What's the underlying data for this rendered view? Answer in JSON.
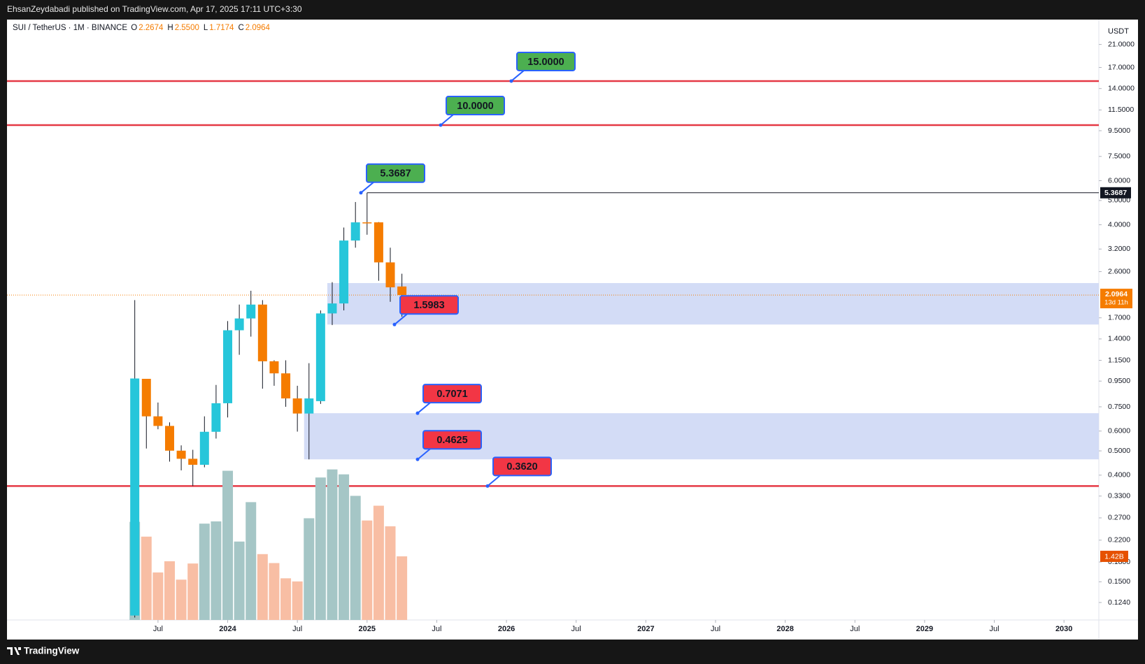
{
  "header": {
    "text": "EhsanZeydabadi published on TradingView.com, Apr 17, 2025 17:11 UTC+3:30"
  },
  "footer": {
    "brand": "TradingView"
  },
  "chart_data": {
    "type": "candlestick",
    "symbol": "SUI / TetherUS · 1M · BINANCE",
    "legend_values": [
      {
        "key": "O",
        "label": "2.2674"
      },
      {
        "key": "H",
        "label": "2.5500"
      },
      {
        "key": "L",
        "label": "1.7174"
      },
      {
        "key": "C",
        "label": "2.0964"
      }
    ],
    "currency": "USDT",
    "x": [
      "2023-05",
      "2023-06",
      "2023-07",
      "2023-08",
      "2023-09",
      "2023-10",
      "2023-11",
      "2023-12",
      "2024-01",
      "2024-02",
      "2024-03",
      "2024-04",
      "2024-05",
      "2024-06",
      "2024-07",
      "2024-08",
      "2024-09",
      "2024-10",
      "2024-11",
      "2024-12",
      "2025-01",
      "2025-02",
      "2025-03",
      "2025-04"
    ],
    "open": [
      0.11,
      0.97,
      0.687,
      0.629,
      0.501,
      0.465,
      0.44,
      0.596,
      0.775,
      1.516,
      1.69,
      1.92,
      1.14,
      1.02,
      0.81,
      0.705,
      0.79,
      1.77,
      1.94,
      3.46,
      4.09,
      4.09,
      2.83,
      2.2674
    ],
    "high": [
      2.0,
      0.97,
      0.78,
      0.65,
      0.526,
      0.505,
      0.687,
      0.917,
      1.65,
      1.92,
      2.18,
      2.0,
      1.15,
      1.15,
      0.91,
      1.12,
      1.82,
      2.36,
      3.9,
      4.93,
      5.3687,
      4.1,
      3.24,
      2.55
    ],
    "low": [
      0.108,
      0.511,
      0.61,
      0.453,
      0.418,
      0.362,
      0.43,
      0.56,
      0.68,
      1.21,
      1.43,
      0.886,
      0.91,
      0.75,
      0.597,
      0.4625,
      0.77,
      1.59,
      1.82,
      3.24,
      3.65,
      2.39,
      1.97,
      1.7174
    ],
    "close": [
      0.973,
      0.687,
      0.629,
      0.501,
      0.465,
      0.44,
      0.596,
      0.775,
      1.516,
      1.69,
      1.92,
      1.14,
      1.02,
      0.81,
      0.705,
      0.81,
      1.77,
      1.94,
      3.46,
      4.09,
      4.07,
      2.83,
      2.25,
      2.0964
    ],
    "volume": [
      2.19,
      1.86,
      1.06,
      1.31,
      0.9,
      1.26,
      2.15,
      2.2,
      3.33,
      1.75,
      2.63,
      1.47,
      1.27,
      0.93,
      0.86,
      2.27,
      3.18,
      3.36,
      3.25,
      2.77,
      2.22,
      2.55,
      2.09,
      1.42
    ],
    "volume_label": {
      "value": 1.42,
      "label": "1.42B"
    },
    "up_color": "#26c6da",
    "down_color": "#f57c00",
    "volume_up_color": "#a5c6c6",
    "volume_down_color": "#f8bea4",
    "log_scale": true,
    "grid": false,
    "xlim": [
      "2022-06",
      "2030-04"
    ],
    "xticks": [
      {
        "value": "2023-07",
        "label": "Jul"
      },
      {
        "value": "2024-01",
        "label": "2024"
      },
      {
        "value": "2024-07",
        "label": "Jul"
      },
      {
        "value": "2025-01",
        "label": "2025"
      },
      {
        "value": "2025-07",
        "label": "Jul"
      },
      {
        "value": "2026-01",
        "label": "2026"
      },
      {
        "value": "2026-07",
        "label": "Jul"
      },
      {
        "value": "2027-01",
        "label": "2027"
      },
      {
        "value": "2027-07",
        "label": "Jul"
      },
      {
        "value": "2028-01",
        "label": "2028"
      },
      {
        "value": "2028-07",
        "label": "Jul"
      },
      {
        "value": "2029-01",
        "label": "2029"
      },
      {
        "value": "2029-07",
        "label": "Jul"
      },
      {
        "value": "2030-01",
        "label": "2030"
      }
    ],
    "ylim": [
      0.1056,
      26.4
    ],
    "yticks": [
      {
        "value": 21,
        "label": "21.0000"
      },
      {
        "value": 17,
        "label": "17.0000"
      },
      {
        "value": 14,
        "label": "14.0000"
      },
      {
        "value": 11.5,
        "label": "11.5000"
      },
      {
        "value": 9.5,
        "label": "9.5000"
      },
      {
        "value": 7.5,
        "label": "7.5000"
      },
      {
        "value": 6,
        "label": "6.0000"
      },
      {
        "value": 5,
        "label": "5.0000"
      },
      {
        "value": 4,
        "label": "4.0000"
      },
      {
        "value": 3.2,
        "label": "3.2000"
      },
      {
        "value": 2.6,
        "label": "2.6000"
      },
      {
        "value": 1.7,
        "label": "1.7000"
      },
      {
        "value": 1.4,
        "label": "1.4000"
      },
      {
        "value": 1.15,
        "label": "1.1500"
      },
      {
        "value": 0.95,
        "label": "0.9500"
      },
      {
        "value": 0.75,
        "label": "0.7500"
      },
      {
        "value": 0.6,
        "label": "0.6000"
      },
      {
        "value": 0.5,
        "label": "0.5000"
      },
      {
        "value": 0.4,
        "label": "0.4000"
      },
      {
        "value": 0.33,
        "label": "0.3300"
      },
      {
        "value": 0.27,
        "label": "0.2700"
      },
      {
        "value": 0.22,
        "label": "0.2200"
      },
      {
        "value": 0.18,
        "label": "0.1800"
      },
      {
        "value": 0.15,
        "label": "0.1500"
      },
      {
        "value": 0.124,
        "label": "0.1240"
      }
    ],
    "volume_ylim": [
      0,
      13.4
    ],
    "last_price": {
      "value": 2.0964,
      "label": "2.0964",
      "countdown": "13d 11h",
      "color": "#f57c00"
    },
    "high_marker": {
      "value": 5.3687,
      "label": "5.3687"
    },
    "levels": [
      {
        "value": 15,
        "color": "#e53945"
      },
      {
        "value": 10,
        "color": "#e53945"
      },
      {
        "value": 0.362,
        "color": "#e53945"
      }
    ],
    "zones": [
      {
        "low": 1.5983,
        "high": 2.34,
        "color": "#d3dcf6"
      },
      {
        "low": 0.4625,
        "high": 0.7071,
        "color": "#d3dcf6"
      }
    ],
    "annotations": [
      {
        "value": 15,
        "label": "15.0000",
        "color": "#4caf50"
      },
      {
        "value": 10,
        "label": "10.0000",
        "color": "#4caf50"
      },
      {
        "value": 5.3687,
        "label": "5.3687",
        "color": "#4caf50"
      },
      {
        "value": 1.5983,
        "label": "1.5983",
        "color": "#f23645"
      },
      {
        "value": 0.7071,
        "label": "0.7071",
        "color": "#f23645"
      },
      {
        "value": 0.4625,
        "label": "0.4625",
        "color": "#f23645"
      },
      {
        "value": 0.362,
        "label": "0.3620",
        "color": "#f23645"
      }
    ]
  }
}
